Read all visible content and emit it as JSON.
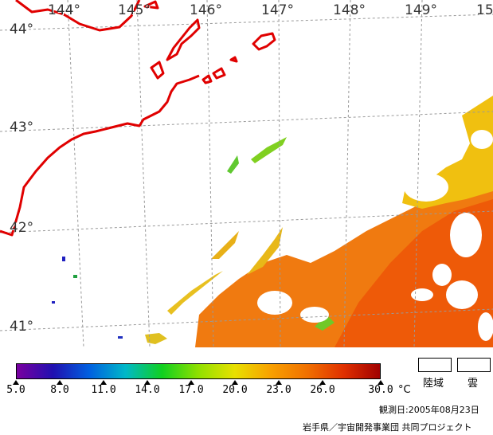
{
  "map": {
    "longitude_labels": [
      "144°",
      "145°",
      "146°",
      "147°",
      "148°",
      "149°",
      "15"
    ],
    "latitude_labels": [
      "44°",
      "43°",
      "42°",
      "41°"
    ],
    "coastline_color": "#e00000",
    "grid_color": "#999999"
  },
  "colorbar": {
    "stops": [
      "#7a00a0",
      "#2010b0",
      "#0060e0",
      "#00b8c8",
      "#10d020",
      "#90e000",
      "#e8e000",
      "#f8a000",
      "#f07000",
      "#e03000",
      "#a00000"
    ],
    "tick_labels": [
      "5.0",
      "8.0",
      "11.0",
      "14.0",
      "17.0",
      "20.0",
      "23.0",
      "26.0",
      "30.0"
    ],
    "unit": "°C"
  },
  "legend": {
    "land_label": "陸域",
    "cloud_label": "雲"
  },
  "observation_date": "観測日:2005年08月23日",
  "credit": "岩手県／宇宙開発事業団 共同プロジェクト"
}
